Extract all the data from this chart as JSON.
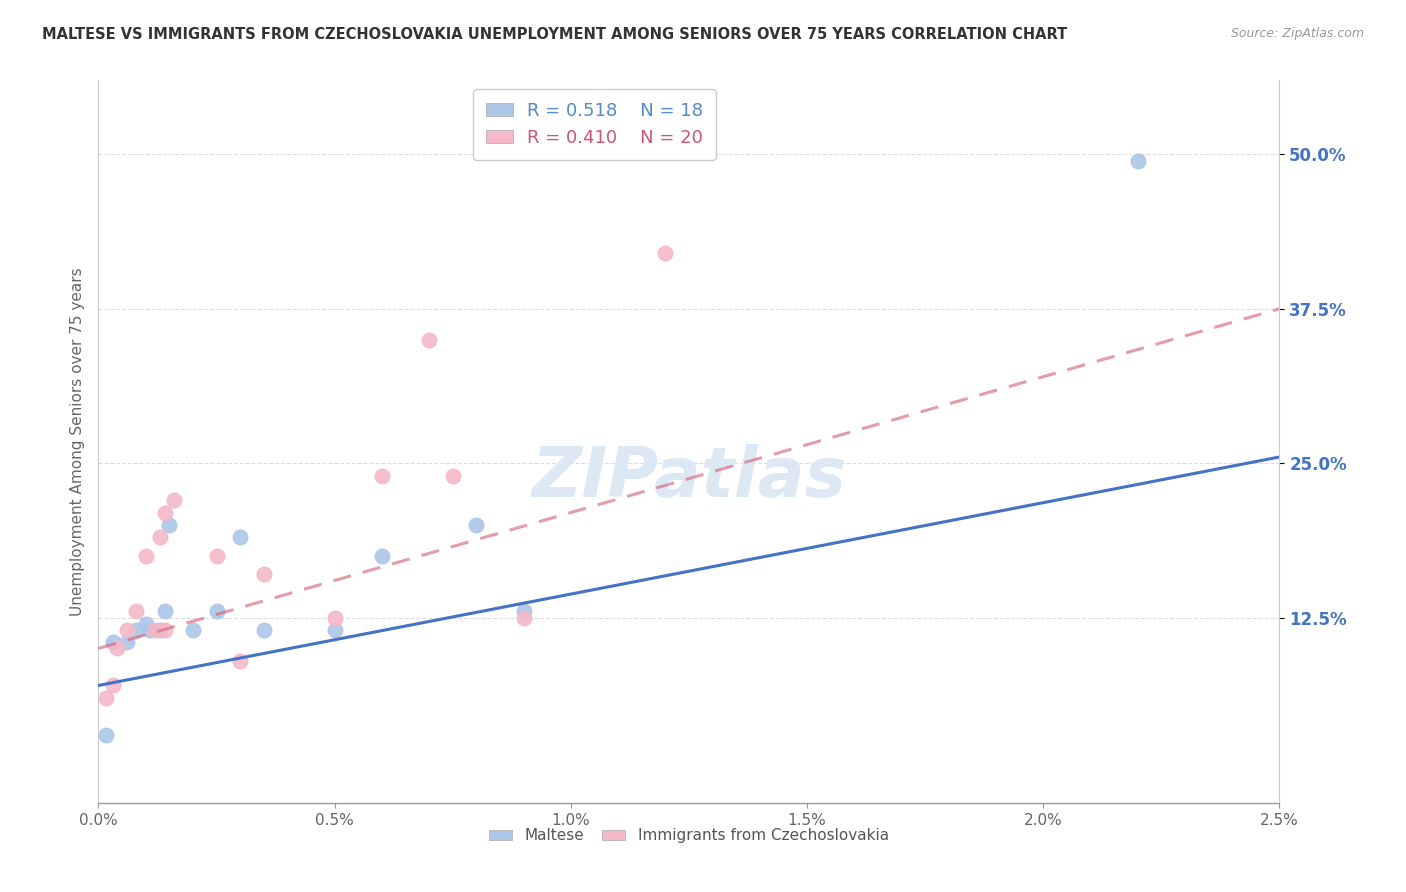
{
  "title": "MALTESE VS IMMIGRANTS FROM CZECHOSLOVAKIA UNEMPLOYMENT AMONG SENIORS OVER 75 YEARS CORRELATION CHART",
  "source": "Source: ZipAtlas.com",
  "ylabel": "Unemployment Among Seniors over 75 years",
  "xlim": [
    0.0,
    0.025
  ],
  "ylim": [
    -0.025,
    0.56
  ],
  "xtick_labels": [
    "0.0%",
    "0.5%",
    "1.0%",
    "1.5%",
    "2.0%",
    "2.5%"
  ],
  "xtick_vals": [
    0.0,
    0.005,
    0.01,
    0.015,
    0.02,
    0.025
  ],
  "ytick_labels": [
    "12.5%",
    "25.0%",
    "37.5%",
    "50.0%"
  ],
  "ytick_vals": [
    0.125,
    0.25,
    0.375,
    0.5
  ],
  "maltese_R": 0.518,
  "maltese_N": 18,
  "czech_R": 0.41,
  "czech_N": 20,
  "maltese_color": "#adc6e8",
  "maltese_line_color": "#4472c4",
  "czech_color": "#f4b8c8",
  "czech_line_color": "#d4687a",
  "maltese_scatter_x": [
    0.00015,
    0.0003,
    0.0006,
    0.0008,
    0.001,
    0.0011,
    0.0013,
    0.0014,
    0.0015,
    0.002,
    0.0025,
    0.003,
    0.0035,
    0.005,
    0.006,
    0.008,
    0.009,
    0.022
  ],
  "maltese_scatter_y": [
    0.03,
    0.105,
    0.105,
    0.115,
    0.12,
    0.115,
    0.115,
    0.13,
    0.2,
    0.115,
    0.13,
    0.19,
    0.115,
    0.115,
    0.175,
    0.2,
    0.13,
    0.495
  ],
  "czech_scatter_x": [
    0.00015,
    0.0003,
    0.0004,
    0.0006,
    0.0008,
    0.001,
    0.0012,
    0.0013,
    0.0014,
    0.0014,
    0.0016,
    0.0025,
    0.003,
    0.0035,
    0.005,
    0.006,
    0.007,
    0.0075,
    0.009,
    0.012
  ],
  "czech_scatter_y": [
    0.06,
    0.07,
    0.1,
    0.115,
    0.13,
    0.175,
    0.115,
    0.19,
    0.21,
    0.115,
    0.22,
    0.175,
    0.09,
    0.16,
    0.125,
    0.24,
    0.35,
    0.24,
    0.125,
    0.42
  ],
  "watermark_text": "ZIPatlas",
  "legend_label_maltese": "Maltese",
  "legend_label_czech": "Immigrants from Czechoslovakia",
  "maltese_line_x0": 0.0,
  "maltese_line_y0": 0.07,
  "maltese_line_x1": 0.025,
  "maltese_line_y1": 0.255,
  "czech_line_x0": 0.0,
  "czech_line_y0": 0.1,
  "czech_line_x1": 0.025,
  "czech_line_y1": 0.375
}
